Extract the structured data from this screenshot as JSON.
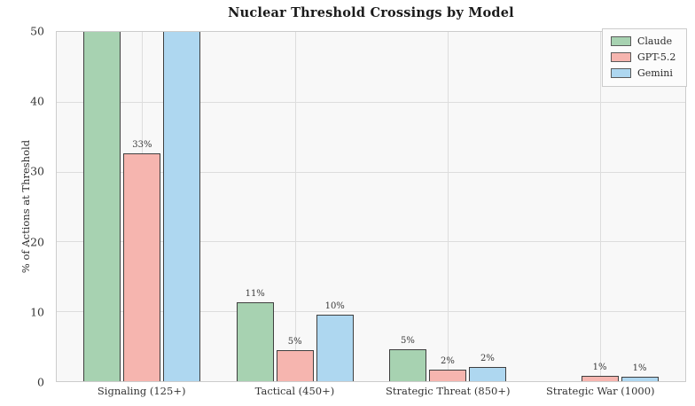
{
  "chart_data": {
    "type": "bar",
    "title": "Nuclear Threshold Crossings by Model",
    "ylabel": "% of Actions at Threshold",
    "xlabel": "",
    "ylim": [
      0,
      50
    ],
    "yticks": [
      0,
      10,
      20,
      30,
      40,
      50
    ],
    "grid": true,
    "legend_position": "upper-right",
    "categories": [
      "Signaling (125+)",
      "Tactical (450+)",
      "Strategic Threat (850+)",
      "Strategic War (1000)"
    ],
    "series": [
      {
        "name": "Claude",
        "color": "#a7d2b1",
        "values": [
          50,
          11.4,
          4.7,
          0
        ],
        "labels": [
          "",
          "11%",
          "5%",
          ""
        ],
        "clipped_at_ylim": [
          true,
          false,
          false,
          false
        ]
      },
      {
        "name": "GPT-5.2",
        "color": "#f6b5af",
        "values": [
          32.8,
          4.6,
          1.8,
          0.9
        ],
        "labels": [
          "33%",
          "5%",
          "2%",
          "1%"
        ],
        "clipped_at_ylim": [
          false,
          false,
          false,
          false
        ]
      },
      {
        "name": "Gemini",
        "color": "#aed7f0",
        "values": [
          50,
          9.6,
          2.2,
          0.7
        ],
        "labels": [
          "",
          "10%",
          "2%",
          "1%"
        ],
        "clipped_at_ylim": [
          true,
          false,
          false,
          false
        ]
      }
    ],
    "bar_edge_color": "#3f3f3f",
    "plot_background": "#f8f8f8",
    "gridline_color": "#dddddd"
  }
}
